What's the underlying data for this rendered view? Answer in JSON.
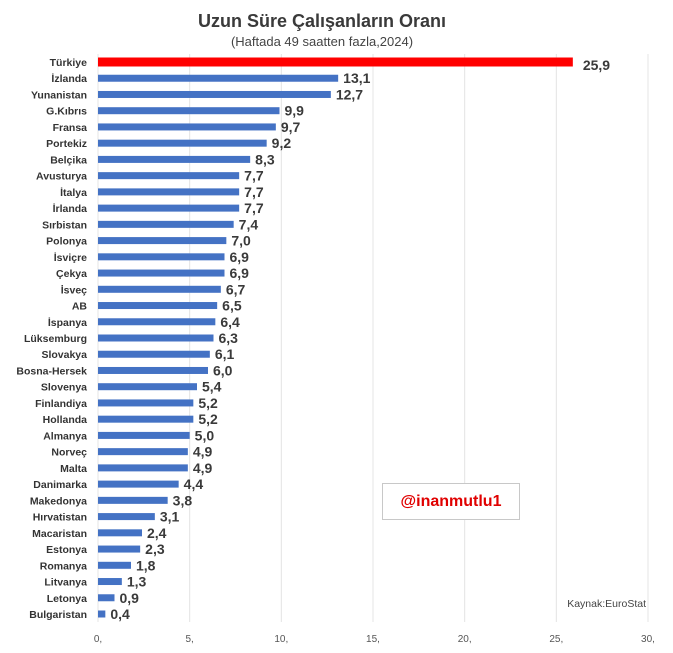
{
  "chart_data": {
    "type": "bar",
    "orientation": "horizontal",
    "title": "Uzun Süre Çalışanların Oranı",
    "subtitle": "(Haftada 49 saatten fazla,2024)",
    "categories": [
      "Türkiye",
      "İzlanda",
      "Yunanistan",
      "G.Kıbrıs",
      "Fransa",
      "Portekiz",
      "Belçika",
      "Avusturya",
      "İtalya",
      "İrlanda",
      "Sırbistan",
      "Polonya",
      "İsviçre",
      "Çekya",
      "İsveç",
      "AB",
      "İspanya",
      "Lüksemburg",
      "Slovakya",
      "Bosna-Hersek",
      "Slovenya",
      "Finlandiya",
      "Hollanda",
      "Almanya",
      "Norveç",
      "Malta",
      "Danimarka",
      "Makedonya",
      "Hırvatistan",
      "Macaristan",
      "Estonya",
      "Romanya",
      "Litvanya",
      "Letonya",
      "Bulgaristan"
    ],
    "values": [
      25.9,
      13.1,
      12.7,
      9.9,
      9.7,
      9.2,
      8.3,
      7.7,
      7.7,
      7.7,
      7.4,
      7.0,
      6.9,
      6.9,
      6.7,
      6.5,
      6.4,
      6.3,
      6.1,
      6.0,
      5.4,
      5.2,
      5.2,
      5.0,
      4.9,
      4.9,
      4.4,
      3.8,
      3.1,
      2.4,
      2.3,
      1.8,
      1.3,
      0.9,
      0.4
    ],
    "value_labels": [
      "25,9",
      "13,1",
      "12,7",
      "9,9",
      "9,7",
      "9,2",
      "8,3",
      "7,7",
      "7,7",
      "7,7",
      "7,4",
      "7,0",
      "6,9",
      "6,9",
      "6,7",
      "6,5",
      "6,4",
      "6,3",
      "6,1",
      "6,0",
      "5,4",
      "5,2",
      "5,2",
      "5,0",
      "4,9",
      "4,9",
      "4,4",
      "3,8",
      "3,1",
      "2,4",
      "2,3",
      "1,8",
      "1,3",
      "0,9",
      "0,4"
    ],
    "highlight": {
      "category": "Türkiye",
      "color": "#ff0000"
    },
    "reference": {
      "category": "AB",
      "label_color": "#4472c4"
    },
    "bar_color": "#4472c4",
    "xlim": [
      0,
      30
    ],
    "x_ticks": [
      0,
      5,
      10,
      15,
      20,
      25,
      30
    ],
    "x_tick_labels": [
      "0,",
      "5,",
      "10,",
      "15,",
      "20,",
      "25,",
      "30,"
    ],
    "grid": "vertical",
    "source": "Kaynak:EuroStat",
    "watermark": "@inanmutlu1"
  }
}
